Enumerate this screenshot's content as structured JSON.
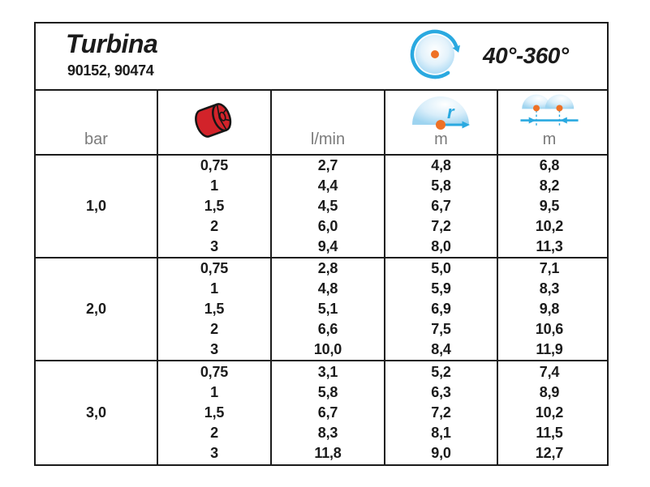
{
  "header": {
    "title": "Turbina",
    "codes": "90152, 90474",
    "angle_range": "40°-360°",
    "rotation_icon": "rotation-range-icon"
  },
  "table": {
    "header": {
      "pressure_unit": "bar",
      "nozzle_icon": "red-nozzle-icon",
      "flow_unit": "l/min",
      "radius_unit": "m",
      "radius_symbol": "r",
      "radius_icon": "throw-radius-icon",
      "spacing_unit": "m",
      "spacing_icon": "sprinkler-spacing-icon"
    },
    "rows": [
      {
        "bar": "1,0",
        "nozzle": [
          "0,75",
          "1",
          "1,5",
          "2",
          "3"
        ],
        "flow": [
          "2,7",
          "4,4",
          "4,5",
          "6,0",
          "9,4"
        ],
        "radius": [
          "4,8",
          "5,8",
          "6,7",
          "7,2",
          "8,0"
        ],
        "spacing": [
          "6,8",
          "8,2",
          "9,5",
          "10,2",
          "11,3"
        ]
      },
      {
        "bar": "2,0",
        "nozzle": [
          "0,75",
          "1",
          "1,5",
          "2",
          "3"
        ],
        "flow": [
          "2,8",
          "4,8",
          "5,1",
          "6,6",
          "10,0"
        ],
        "radius": [
          "5,0",
          "5,9",
          "6,9",
          "7,5",
          "8,4"
        ],
        "spacing": [
          "7,1",
          "8,3",
          "9,8",
          "10,6",
          "11,9"
        ]
      },
      {
        "bar": "3,0",
        "nozzle": [
          "0,75",
          "1",
          "1,5",
          "2",
          "3"
        ],
        "flow": [
          "3,1",
          "5,8",
          "6,7",
          "8,3",
          "11,8"
        ],
        "radius": [
          "5,2",
          "6,3",
          "7,2",
          "8,1",
          "9,0"
        ],
        "spacing": [
          "7,4",
          "8,9",
          "10,2",
          "11,5",
          "12,7"
        ]
      }
    ]
  },
  "colors": {
    "line_black": "#1b1b1b",
    "label_gray": "#7b7b7b",
    "accent_blue": "#2aa9e0",
    "orange": "#ee7125",
    "nozzle_red": "#d2232a",
    "light_blue_fill": "#a9d9f4"
  }
}
